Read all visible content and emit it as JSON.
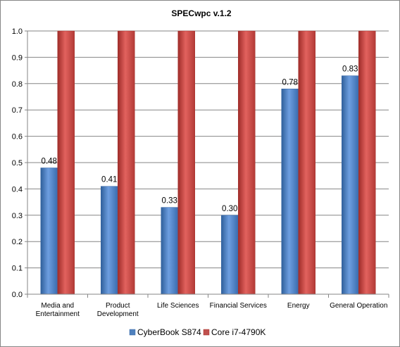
{
  "chart_data": {
    "type": "bar",
    "title": "SPECwpc v.1.2",
    "xlabel": "",
    "ylabel": "",
    "ylim": [
      0,
      1.0
    ],
    "yticks": [
      "0.0",
      "0.1",
      "0.2",
      "0.3",
      "0.4",
      "0.5",
      "0.6",
      "0.7",
      "0.8",
      "0.9",
      "1.0"
    ],
    "categories": [
      [
        "Media and",
        "Entertainment"
      ],
      [
        "Product",
        "Development"
      ],
      [
        "Life Sciences"
      ],
      [
        "Financial Services"
      ],
      [
        "Energy"
      ],
      [
        "General Operation"
      ]
    ],
    "series": [
      {
        "name": "CyberBook S874",
        "color": "#4f81bd",
        "values": [
          0.48,
          0.41,
          0.33,
          0.3,
          0.78,
          0.83
        ],
        "data_labels": [
          "0.48",
          "0.41",
          "0.33",
          "0.30",
          "0.78",
          "0.83"
        ]
      },
      {
        "name": "Core i7-4790K",
        "color": "#c0504d",
        "values": [
          1.0,
          1.0,
          1.0,
          1.0,
          1.0,
          1.0
        ],
        "data_labels": [
          "",
          "",
          "",
          "",
          "",
          ""
        ]
      }
    ],
    "grid": true,
    "legend_position": "bottom"
  }
}
